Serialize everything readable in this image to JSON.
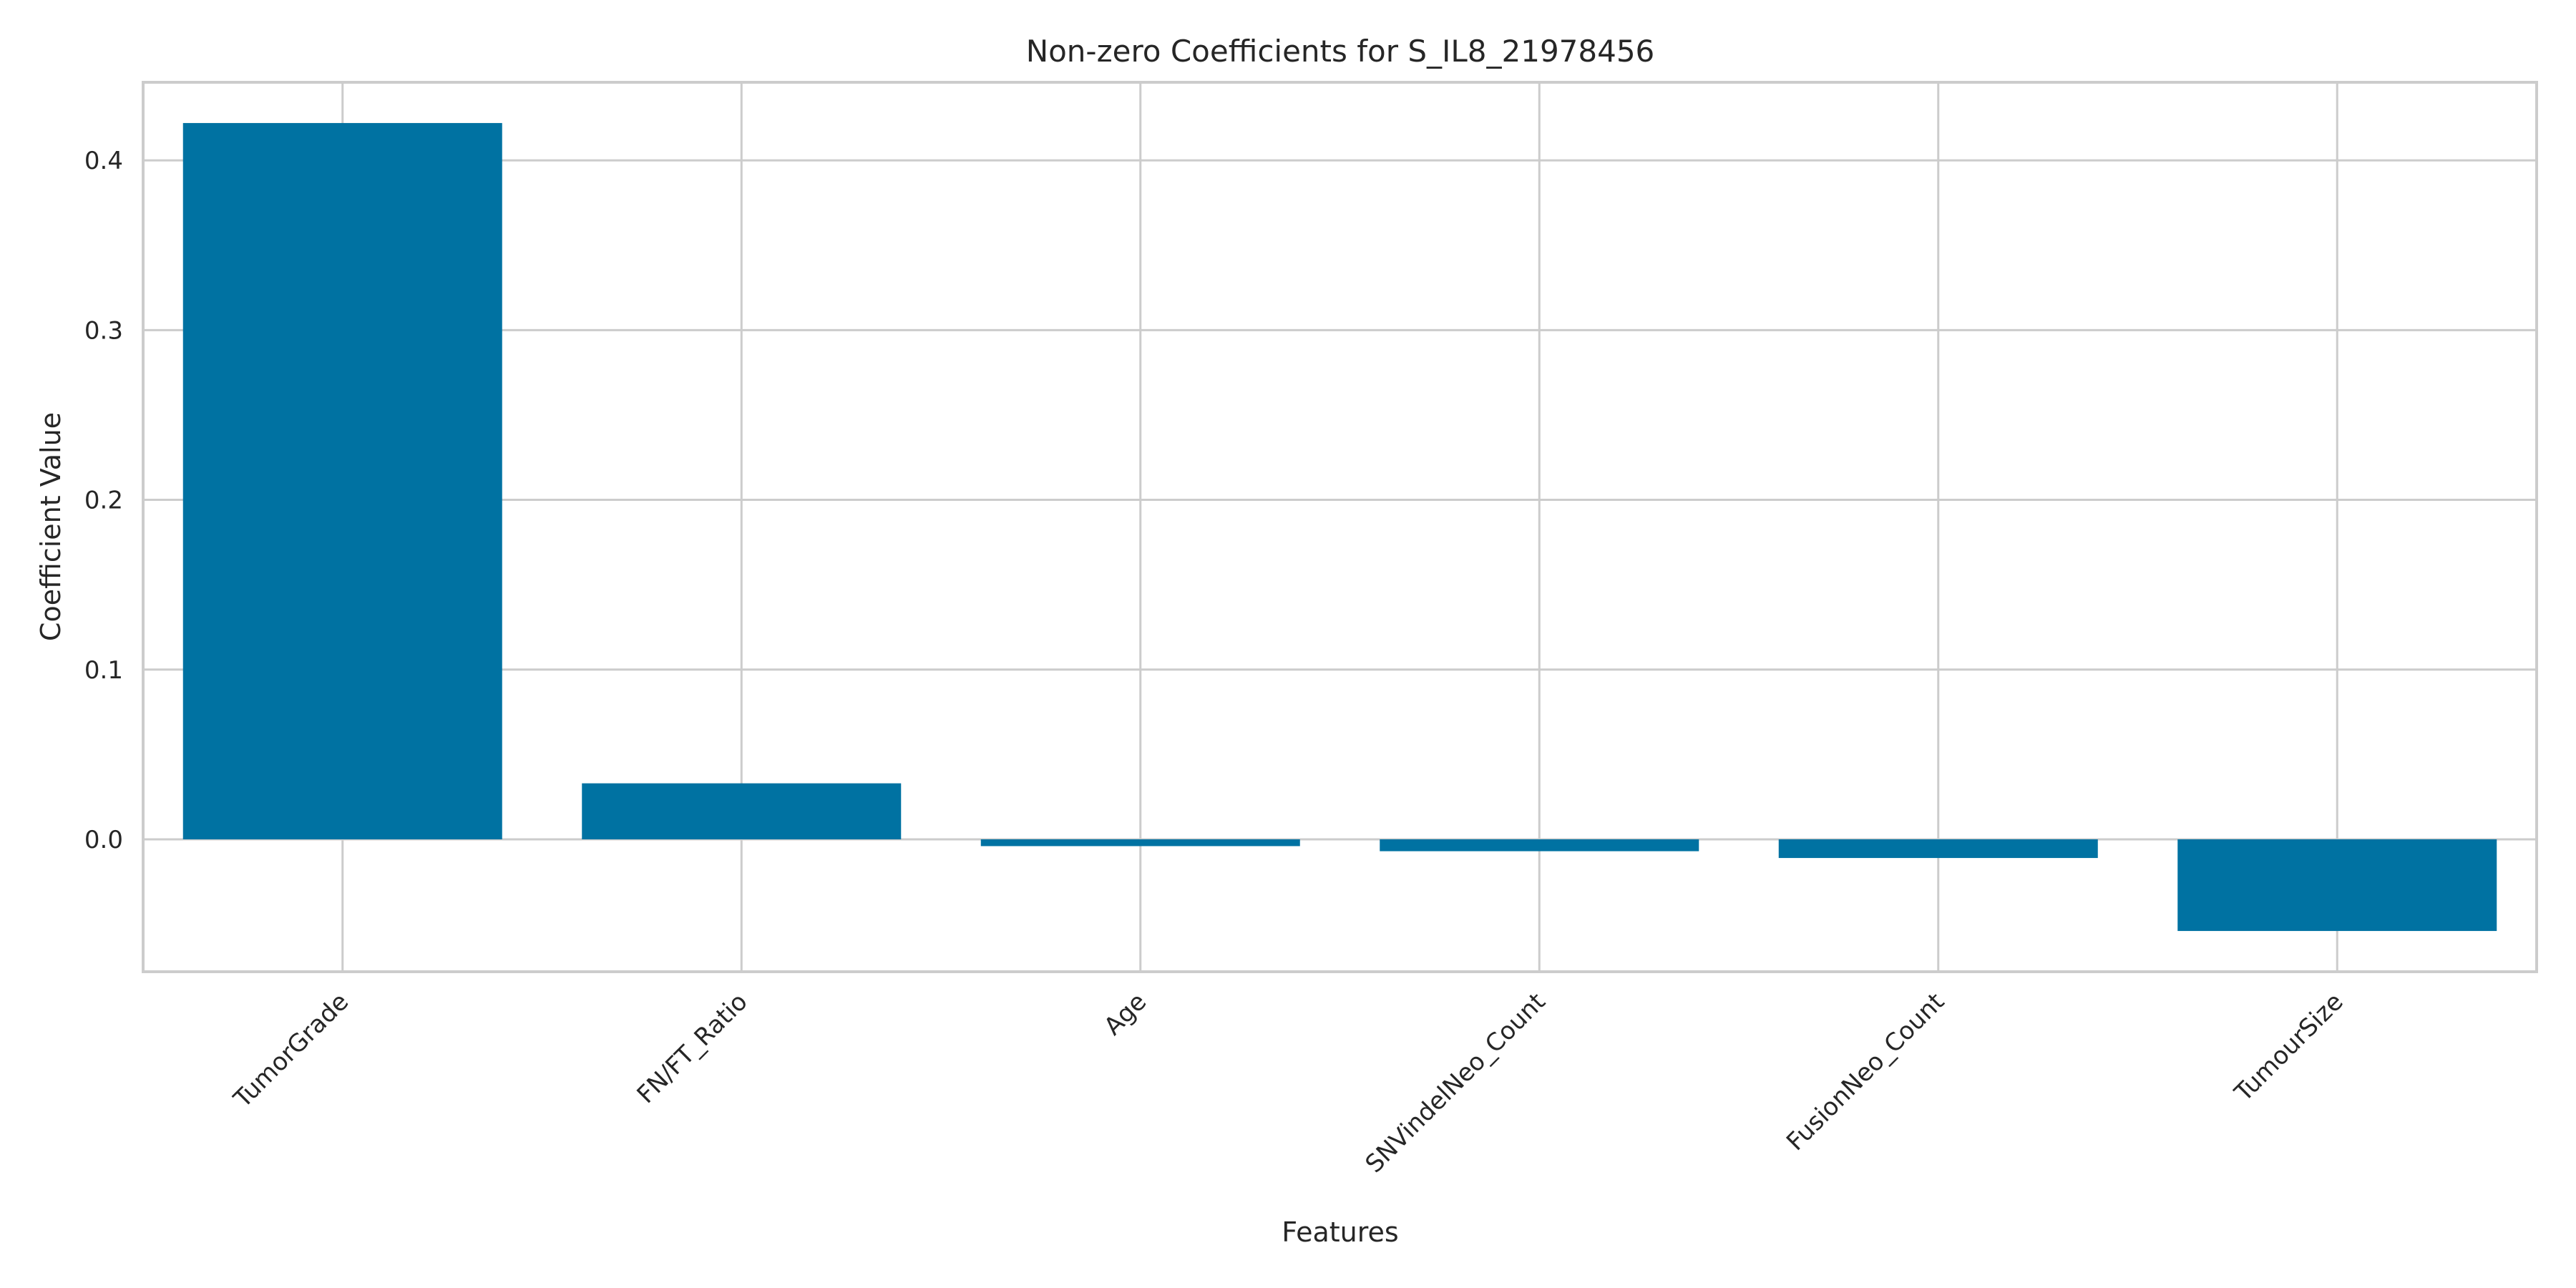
{
  "chart_data": {
    "type": "bar",
    "title": "Non-zero Coefficients for S_IL8_21978456",
    "xlabel": "Features",
    "ylabel": "Coefficient Value",
    "categories": [
      "TumorGrade",
      "FN/FT_Ratio",
      "Age",
      "SNVindelNeo_Count",
      "FusionNeo_Count",
      "TumourSize"
    ],
    "values": [
      0.422,
      0.033,
      -0.004,
      -0.007,
      -0.011,
      -0.054
    ],
    "ylim": [
      -0.078,
      0.446
    ],
    "yticks": [
      0.0,
      0.1,
      0.2,
      0.3,
      0.4
    ],
    "ytick_labels": [
      "0.0",
      "0.1",
      "0.2",
      "0.3",
      "0.4"
    ],
    "bar_color": "#0072a2",
    "grid": true,
    "legend": "none"
  }
}
